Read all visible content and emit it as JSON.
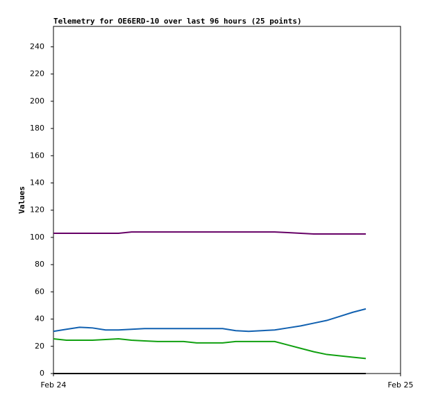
{
  "chart_data": {
    "type": "line",
    "title": "Telemetry for OE6ERD-10 over last 96 hours (25 points)",
    "y_label": "Values",
    "x": [
      0,
      0.9,
      1.8,
      2.7,
      3.6,
      4.5,
      5.4,
      6.3,
      7.2,
      8.1,
      9,
      9.9,
      10.8,
      11.7,
      12.6,
      13.5,
      14.4,
      15.3,
      16.2,
      17.1,
      18,
      18.9,
      19.8,
      20.7,
      21.6
    ],
    "xlim": [
      0,
      24
    ],
    "xticks": [
      {
        "value": 0,
        "label": "Feb 24"
      },
      {
        "value": 24,
        "label": "Feb 25"
      }
    ],
    "ylim": [
      0,
      255
    ],
    "yticks": [
      0,
      20,
      40,
      60,
      80,
      100,
      120,
      140,
      160,
      180,
      200,
      220,
      240
    ],
    "series": [
      {
        "color": "#660066",
        "values": [
          103,
          103,
          103,
          103,
          103,
          103,
          104,
          104,
          104,
          104,
          104,
          104,
          104,
          104,
          104,
          104,
          104,
          104,
          103.5,
          103,
          102.5,
          102.5,
          102.5,
          102.5,
          102.5
        ]
      },
      {
        "color": "#1060b0",
        "values": [
          31,
          32.5,
          34,
          33.5,
          32,
          32,
          32.5,
          33,
          33,
          33,
          33,
          33,
          33,
          33,
          31.5,
          31,
          31.5,
          32,
          33.5,
          35,
          37,
          39,
          42,
          45,
          47.5
        ]
      },
      {
        "color": "#10a010",
        "values": [
          25.5,
          24.5,
          24.5,
          24.5,
          25,
          25.5,
          24.5,
          24,
          23.5,
          23.5,
          23.5,
          22.5,
          22.5,
          22.5,
          23.5,
          23.5,
          23.5,
          23.5,
          21,
          18.5,
          16,
          14,
          13,
          12,
          11
        ]
      },
      {
        "color": "#000000",
        "values": [
          0,
          0,
          0,
          0,
          0,
          0,
          0,
          0,
          0,
          0,
          0,
          0,
          0,
          0,
          0,
          0,
          0,
          0,
          0,
          0,
          0,
          0,
          0,
          0,
          0
        ]
      }
    ]
  }
}
